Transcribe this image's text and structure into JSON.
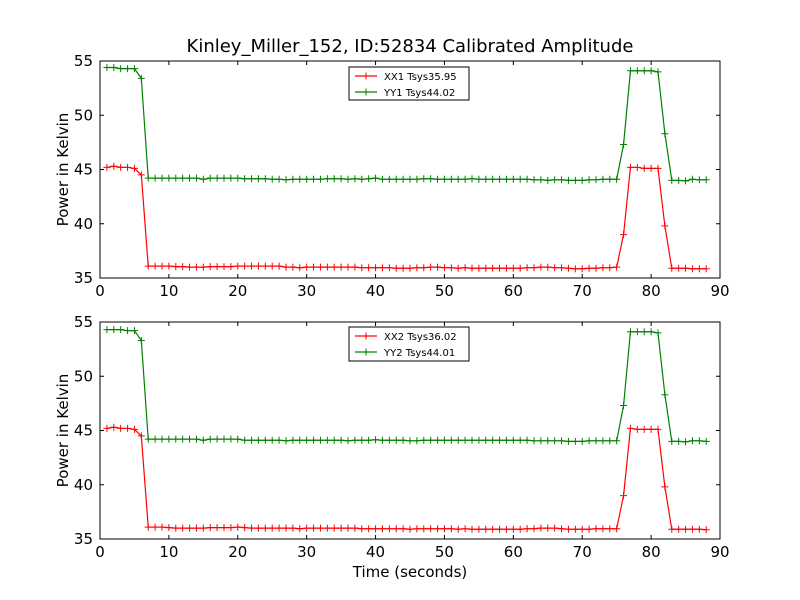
{
  "chart_data": {
    "title": "Kinley_Miller_152, ID:52834 Calibrated Amplitude",
    "xlabel": "Time (seconds)",
    "x_ticks": [
      "0",
      "10",
      "20",
      "30",
      "40",
      "50",
      "60",
      "70",
      "80",
      "90"
    ],
    "x": [
      1,
      2,
      3,
      4,
      5,
      6,
      7,
      8,
      9,
      10,
      11,
      12,
      13,
      14,
      15,
      16,
      17,
      18,
      19,
      20,
      21,
      22,
      23,
      24,
      25,
      26,
      27,
      28,
      29,
      30,
      31,
      32,
      33,
      34,
      35,
      36,
      37,
      38,
      39,
      40,
      41,
      42,
      43,
      44,
      45,
      46,
      47,
      48,
      49,
      50,
      51,
      52,
      53,
      54,
      55,
      56,
      57,
      58,
      59,
      60,
      61,
      62,
      63,
      64,
      65,
      66,
      67,
      68,
      69,
      70,
      71,
      72,
      73,
      74,
      75,
      76,
      77,
      78,
      79,
      80,
      81,
      82,
      83,
      84,
      85,
      86,
      87,
      88
    ],
    "panels": [
      {
        "type": "line",
        "ylabel": "Power in Kelvin",
        "xlim": [
          0,
          90
        ],
        "ylim": [
          35,
          55
        ],
        "y_ticks": [
          "35",
          "40",
          "45",
          "50",
          "55"
        ],
        "grid": false,
        "legend_position": "top-center",
        "series": [
          {
            "name": "XX1 Tsys35.95",
            "color": "#ff0000",
            "values": [
              45.2,
              45.3,
              45.2,
              45.2,
              45.1,
              44.5,
              36.1,
              36.1,
              36.1,
              36.1,
              36.05,
              36.05,
              36.0,
              36.0,
              36.0,
              36.05,
              36.05,
              36.05,
              36.05,
              36.1,
              36.1,
              36.1,
              36.1,
              36.1,
              36.1,
              36.1,
              36.0,
              36.0,
              35.95,
              36.0,
              36.0,
              36.0,
              36.0,
              36.0,
              36.0,
              36.0,
              36.0,
              35.95,
              35.95,
              35.95,
              35.95,
              35.95,
              35.9,
              35.9,
              35.9,
              35.95,
              35.95,
              36.0,
              36.0,
              35.95,
              35.95,
              35.9,
              35.95,
              35.9,
              35.9,
              35.9,
              35.9,
              35.9,
              35.9,
              35.9,
              35.9,
              35.95,
              35.95,
              36.0,
              36.0,
              35.95,
              35.95,
              35.9,
              35.85,
              35.85,
              35.9,
              35.9,
              35.95,
              35.95,
              36.0,
              39.0,
              45.2,
              45.2,
              45.1,
              45.1,
              45.1,
              39.8,
              35.9,
              35.9,
              35.9,
              35.85,
              35.85,
              35.85
            ]
          },
          {
            "name": "YY1 Tsys44.02",
            "color": "#008000",
            "values": [
              54.4,
              54.4,
              54.3,
              54.3,
              54.3,
              53.4,
              44.2,
              44.2,
              44.2,
              44.2,
              44.2,
              44.2,
              44.2,
              44.2,
              44.1,
              44.2,
              44.2,
              44.2,
              44.2,
              44.2,
              44.15,
              44.15,
              44.15,
              44.15,
              44.1,
              44.1,
              44.05,
              44.1,
              44.1,
              44.1,
              44.1,
              44.1,
              44.15,
              44.15,
              44.15,
              44.1,
              44.15,
              44.1,
              44.15,
              44.2,
              44.1,
              44.1,
              44.1,
              44.1,
              44.1,
              44.1,
              44.15,
              44.15,
              44.1,
              44.1,
              44.1,
              44.1,
              44.1,
              44.15,
              44.1,
              44.1,
              44.1,
              44.1,
              44.1,
              44.1,
              44.1,
              44.1,
              44.05,
              44.05,
              44.0,
              44.05,
              44.05,
              44.0,
              44.0,
              44.0,
              44.05,
              44.05,
              44.1,
              44.1,
              44.1,
              47.3,
              54.1,
              54.1,
              54.1,
              54.1,
              54.0,
              48.3,
              44.0,
              44.0,
              43.95,
              44.1,
              44.05,
              44.05
            ]
          }
        ]
      },
      {
        "type": "line",
        "ylabel": "Power in Kelvin",
        "xlim": [
          0,
          90
        ],
        "ylim": [
          35,
          55
        ],
        "y_ticks": [
          "35",
          "40",
          "45",
          "50",
          "55"
        ],
        "grid": false,
        "legend_position": "top-center",
        "series": [
          {
            "name": "XX2 Tsys36.02",
            "color": "#ff0000",
            "values": [
              45.2,
              45.3,
              45.2,
              45.2,
              45.1,
              44.5,
              36.1,
              36.1,
              36.1,
              36.05,
              36.0,
              36.0,
              36.0,
              36.0,
              36.0,
              36.05,
              36.05,
              36.05,
              36.05,
              36.1,
              36.05,
              36.0,
              36.0,
              36.0,
              36.0,
              36.0,
              36.0,
              36.0,
              35.95,
              36.0,
              36.0,
              36.0,
              36.0,
              36.0,
              36.0,
              36.0,
              36.0,
              35.95,
              35.95,
              35.95,
              35.95,
              35.95,
              35.95,
              35.95,
              35.9,
              35.95,
              35.95,
              35.95,
              35.95,
              35.95,
              35.95,
              35.9,
              35.95,
              35.9,
              35.9,
              35.9,
              35.9,
              35.9,
              35.9,
              35.9,
              35.9,
              35.95,
              35.95,
              36.0,
              36.0,
              36.0,
              35.95,
              35.9,
              35.9,
              35.9,
              35.9,
              35.95,
              35.95,
              35.95,
              35.95,
              39.0,
              45.2,
              45.1,
              45.1,
              45.1,
              45.1,
              39.8,
              35.9,
              35.9,
              35.9,
              35.9,
              35.9,
              35.85
            ]
          },
          {
            "name": "YY2 Tsys44.01",
            "color": "#008000",
            "values": [
              54.3,
              54.3,
              54.3,
              54.2,
              54.2,
              53.3,
              44.2,
              44.2,
              44.2,
              44.2,
              44.2,
              44.2,
              44.2,
              44.2,
              44.1,
              44.2,
              44.2,
              44.2,
              44.2,
              44.2,
              44.1,
              44.1,
              44.1,
              44.1,
              44.1,
              44.1,
              44.05,
              44.1,
              44.1,
              44.1,
              44.1,
              44.1,
              44.1,
              44.1,
              44.1,
              44.05,
              44.1,
              44.1,
              44.1,
              44.15,
              44.1,
              44.1,
              44.1,
              44.1,
              44.05,
              44.05,
              44.1,
              44.1,
              44.1,
              44.1,
              44.1,
              44.1,
              44.1,
              44.1,
              44.1,
              44.1,
              44.1,
              44.1,
              44.1,
              44.1,
              44.1,
              44.1,
              44.05,
              44.05,
              44.05,
              44.05,
              44.05,
              44.0,
              44.0,
              44.0,
              44.05,
              44.05,
              44.05,
              44.05,
              44.05,
              47.3,
              54.1,
              54.1,
              54.1,
              54.1,
              54.0,
              48.3,
              44.0,
              44.0,
              43.95,
              44.05,
              44.05,
              44.0
            ]
          }
        ]
      }
    ]
  }
}
